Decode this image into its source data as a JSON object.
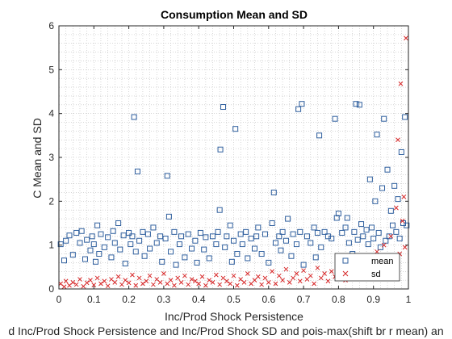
{
  "chart_data": {
    "type": "scatter",
    "title": "Consumption Mean and SD",
    "xlabel": "Inc/Prod Shock Persistence",
    "ylabel": "C Mean and SD",
    "bottom_caption": "d Inc/Prod Shock Persistence and Inc/Prod Shock SD and pois-max(shift br r mean) an",
    "xlim": [
      0,
      1
    ],
    "ylim": [
      0,
      6
    ],
    "xticks": [
      "0",
      "0.1",
      "0.2",
      "0.3",
      "0.4",
      "0.5",
      "0.6",
      "0.7",
      "0.8",
      "0.9",
      "1"
    ],
    "yticks": [
      "0",
      "1",
      "2",
      "3",
      "4",
      "5",
      "6"
    ],
    "grid": "minor dotted",
    "legend": {
      "position": "bottom-right",
      "entries": [
        "mean",
        "sd"
      ]
    },
    "series": [
      {
        "name": "mean",
        "marker": "square",
        "color": "#2f5f9e",
        "points": [
          [
            0.005,
            1.02
          ],
          [
            0.015,
            0.65
          ],
          [
            0.02,
            1.1
          ],
          [
            0.03,
            1.22
          ],
          [
            0.04,
            0.78
          ],
          [
            0.05,
            1.28
          ],
          [
            0.06,
            1.05
          ],
          [
            0.065,
            1.32
          ],
          [
            0.075,
            0.68
          ],
          [
            0.08,
            1.12
          ],
          [
            0.09,
            0.88
          ],
          [
            0.095,
            1.2
          ],
          [
            0.1,
            1.02
          ],
          [
            0.105,
            0.62
          ],
          [
            0.11,
            1.45
          ],
          [
            0.115,
            0.8
          ],
          [
            0.12,
            1.25
          ],
          [
            0.13,
            0.95
          ],
          [
            0.14,
            1.18
          ],
          [
            0.15,
            0.72
          ],
          [
            0.155,
            1.32
          ],
          [
            0.16,
            1.05
          ],
          [
            0.17,
            1.5
          ],
          [
            0.175,
            0.9
          ],
          [
            0.185,
            1.22
          ],
          [
            0.19,
            0.58
          ],
          [
            0.2,
            1.28
          ],
          [
            0.205,
            1.02
          ],
          [
            0.21,
            1.2
          ],
          [
            0.215,
            3.92
          ],
          [
            0.22,
            0.85
          ],
          [
            0.225,
            2.68
          ],
          [
            0.23,
            1.1
          ],
          [
            0.24,
            1.3
          ],
          [
            0.245,
            0.75
          ],
          [
            0.255,
            1.25
          ],
          [
            0.26,
            0.92
          ],
          [
            0.27,
            1.4
          ],
          [
            0.28,
            1.05
          ],
          [
            0.29,
            1.2
          ],
          [
            0.295,
            0.62
          ],
          [
            0.305,
            1.15
          ],
          [
            0.31,
            2.58
          ],
          [
            0.315,
            1.65
          ],
          [
            0.32,
            0.85
          ],
          [
            0.33,
            1.3
          ],
          [
            0.335,
            0.55
          ],
          [
            0.345,
            1.02
          ],
          [
            0.35,
            1.2
          ],
          [
            0.36,
            0.72
          ],
          [
            0.37,
            1.25
          ],
          [
            0.38,
            0.92
          ],
          [
            0.39,
            1.1
          ],
          [
            0.395,
            0.6
          ],
          [
            0.405,
            1.28
          ],
          [
            0.415,
            0.9
          ],
          [
            0.42,
            1.18
          ],
          [
            0.43,
            0.7
          ],
          [
            0.44,
            1.2
          ],
          [
            0.45,
            1.02
          ],
          [
            0.455,
            1.3
          ],
          [
            0.46,
            1.8
          ],
          [
            0.462,
            3.18
          ],
          [
            0.47,
            4.15
          ],
          [
            0.475,
            0.95
          ],
          [
            0.48,
            1.2
          ],
          [
            0.49,
            1.45
          ],
          [
            0.495,
            0.62
          ],
          [
            0.5,
            1.1
          ],
          [
            0.505,
            3.65
          ],
          [
            0.51,
            0.8
          ],
          [
            0.52,
            1.25
          ],
          [
            0.525,
            1.02
          ],
          [
            0.535,
            1.3
          ],
          [
            0.54,
            0.7
          ],
          [
            0.55,
            1.15
          ],
          [
            0.56,
            0.92
          ],
          [
            0.565,
            1.2
          ],
          [
            0.57,
            1.4
          ],
          [
            0.58,
            0.8
          ],
          [
            0.59,
            1.25
          ],
          [
            0.6,
            0.6
          ],
          [
            0.61,
            1.5
          ],
          [
            0.615,
            2.2
          ],
          [
            0.62,
            1.05
          ],
          [
            0.63,
            1.2
          ],
          [
            0.635,
            0.88
          ],
          [
            0.64,
            1.3
          ],
          [
            0.65,
            1.1
          ],
          [
            0.655,
            1.6
          ],
          [
            0.665,
            0.75
          ],
          [
            0.67,
            1.25
          ],
          [
            0.68,
            1.02
          ],
          [
            0.685,
            4.1
          ],
          [
            0.69,
            1.3
          ],
          [
            0.695,
            4.22
          ],
          [
            0.7,
            0.55
          ],
          [
            0.71,
            1.2
          ],
          [
            0.72,
            1.05
          ],
          [
            0.73,
            1.4
          ],
          [
            0.735,
            0.72
          ],
          [
            0.74,
            1.28
          ],
          [
            0.745,
            3.5
          ],
          [
            0.75,
            0.95
          ],
          [
            0.76,
            1.3
          ],
          [
            0.77,
            1.2
          ],
          [
            0.78,
            1.15
          ],
          [
            0.79,
            3.88
          ],
          [
            0.795,
            1.62
          ],
          [
            0.8,
            1.72
          ],
          [
            0.81,
            1.28
          ],
          [
            0.815,
            0.62
          ],
          [
            0.82,
            1.4
          ],
          [
            0.825,
            1.62
          ],
          [
            0.83,
            1.05
          ],
          [
            0.84,
            0.8
          ],
          [
            0.845,
            1.3
          ],
          [
            0.85,
            4.22
          ],
          [
            0.855,
            1.12
          ],
          [
            0.86,
            4.2
          ],
          [
            0.865,
            1.48
          ],
          [
            0.87,
            1.2
          ],
          [
            0.875,
            0.68
          ],
          [
            0.88,
            1.35
          ],
          [
            0.885,
            1.02
          ],
          [
            0.89,
            2.5
          ],
          [
            0.895,
            1.4
          ],
          [
            0.9,
            1.15
          ],
          [
            0.905,
            2.0
          ],
          [
            0.91,
            3.52
          ],
          [
            0.915,
            1.28
          ],
          [
            0.92,
            0.95
          ],
          [
            0.925,
            2.3
          ],
          [
            0.93,
            3.88
          ],
          [
            0.935,
            1.1
          ],
          [
            0.94,
            2.72
          ],
          [
            0.945,
            1.2
          ],
          [
            0.95,
            1.78
          ],
          [
            0.955,
            1.45
          ],
          [
            0.96,
            2.35
          ],
          [
            0.965,
            1.3
          ],
          [
            0.97,
            2.05
          ],
          [
            0.975,
            1.15
          ],
          [
            0.98,
            3.12
          ],
          [
            0.985,
            1.5
          ],
          [
            0.99,
            3.92
          ],
          [
            0.995,
            1.45
          ]
        ]
      },
      {
        "name": "sd",
        "marker": "x",
        "color": "#d62728",
        "points": [
          [
            0.005,
            0.12
          ],
          [
            0.015,
            0.05
          ],
          [
            0.02,
            0.18
          ],
          [
            0.03,
            0.08
          ],
          [
            0.04,
            0.15
          ],
          [
            0.05,
            0.1
          ],
          [
            0.06,
            0.22
          ],
          [
            0.07,
            0.06
          ],
          [
            0.08,
            0.14
          ],
          [
            0.09,
            0.2
          ],
          [
            0.1,
            0.09
          ],
          [
            0.11,
            0.25
          ],
          [
            0.12,
            0.12
          ],
          [
            0.13,
            0.18
          ],
          [
            0.14,
            0.07
          ],
          [
            0.15,
            0.22
          ],
          [
            0.16,
            0.15
          ],
          [
            0.17,
            0.28
          ],
          [
            0.18,
            0.1
          ],
          [
            0.19,
            0.2
          ],
          [
            0.2,
            0.14
          ],
          [
            0.21,
            0.32
          ],
          [
            0.22,
            0.08
          ],
          [
            0.23,
            0.25
          ],
          [
            0.24,
            0.12
          ],
          [
            0.25,
            0.18
          ],
          [
            0.26,
            0.3
          ],
          [
            0.27,
            0.1
          ],
          [
            0.28,
            0.22
          ],
          [
            0.29,
            0.15
          ],
          [
            0.3,
            0.35
          ],
          [
            0.31,
            0.12
          ],
          [
            0.32,
            0.2
          ],
          [
            0.33,
            0.08
          ],
          [
            0.34,
            0.25
          ],
          [
            0.35,
            0.15
          ],
          [
            0.36,
            0.3
          ],
          [
            0.37,
            0.1
          ],
          [
            0.38,
            0.22
          ],
          [
            0.39,
            0.18
          ],
          [
            0.4,
            0.12
          ],
          [
            0.41,
            0.28
          ],
          [
            0.42,
            0.08
          ],
          [
            0.43,
            0.2
          ],
          [
            0.44,
            0.15
          ],
          [
            0.45,
            0.32
          ],
          [
            0.46,
            0.1
          ],
          [
            0.47,
            0.25
          ],
          [
            0.48,
            0.18
          ],
          [
            0.49,
            0.12
          ],
          [
            0.5,
            0.3
          ],
          [
            0.51,
            0.08
          ],
          [
            0.52,
            0.22
          ],
          [
            0.53,
            0.15
          ],
          [
            0.54,
            0.35
          ],
          [
            0.55,
            0.12
          ],
          [
            0.56,
            0.2
          ],
          [
            0.57,
            0.28
          ],
          [
            0.58,
            0.1
          ],
          [
            0.59,
            0.25
          ],
          [
            0.6,
            0.15
          ],
          [
            0.61,
            0.4
          ],
          [
            0.62,
            0.12
          ],
          [
            0.63,
            0.3
          ],
          [
            0.64,
            0.2
          ],
          [
            0.65,
            0.45
          ],
          [
            0.66,
            0.15
          ],
          [
            0.67,
            0.25
          ],
          [
            0.68,
            0.35
          ],
          [
            0.69,
            0.18
          ],
          [
            0.7,
            0.42
          ],
          [
            0.71,
            0.22
          ],
          [
            0.72,
            0.3
          ],
          [
            0.73,
            0.12
          ],
          [
            0.74,
            0.48
          ],
          [
            0.75,
            0.25
          ],
          [
            0.76,
            0.35
          ],
          [
            0.77,
            0.18
          ],
          [
            0.78,
            0.4
          ],
          [
            0.79,
            0.28
          ],
          [
            0.8,
            0.5
          ],
          [
            0.81,
            0.3
          ],
          [
            0.82,
            0.2
          ],
          [
            0.83,
            0.45
          ],
          [
            0.84,
            0.35
          ],
          [
            0.85,
            0.55
          ],
          [
            0.86,
            0.25
          ],
          [
            0.87,
            0.6
          ],
          [
            0.88,
            0.4
          ],
          [
            0.89,
            0.7
          ],
          [
            0.9,
            0.35
          ],
          [
            0.91,
            0.85
          ],
          [
            0.92,
            0.5
          ],
          [
            0.93,
            1.0
          ],
          [
            0.94,
            0.45
          ],
          [
            0.95,
            1.2
          ],
          [
            0.96,
            0.6
          ],
          [
            0.965,
            1.85
          ],
          [
            0.97,
            3.4
          ],
          [
            0.975,
            0.8
          ],
          [
            0.978,
            4.68
          ],
          [
            0.983,
            1.55
          ],
          [
            0.987,
            2.1
          ],
          [
            0.99,
            0.95
          ],
          [
            0.993,
            5.72
          ]
        ]
      }
    ]
  }
}
